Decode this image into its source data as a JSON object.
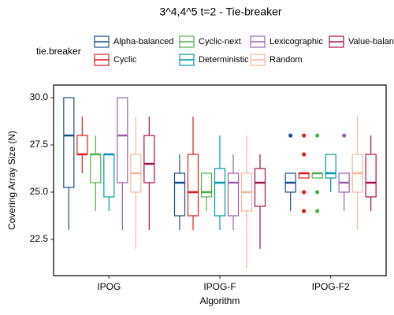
{
  "chart_data": {
    "type": "box",
    "title": "3^4,4^5 t=2 - Tie-breaker",
    "x_label": "Algorithm",
    "y_label": "Covering Array Size (N)",
    "legend_title": "tie.breaker",
    "categories": [
      "IPOG",
      "IPOG-F",
      "IPOG-F2"
    ],
    "ylim": [
      20.58,
      30.67
    ],
    "yticks": [
      22.5,
      {
        "value": 25,
        "label": "25.0"
      },
      27.5,
      {
        "value": 30,
        "label": "30.0"
      }
    ],
    "series": [
      {
        "name": "Alpha-balanced",
        "color": "#1a4f8f",
        "values": [
          {
            "min": 23,
            "q1": 25.25,
            "median": 28,
            "q3": 30,
            "max": 30
          },
          {
            "min": 23,
            "q1": 23.75,
            "median": 25.5,
            "q3": 26,
            "max": 27
          },
          {
            "min": 24,
            "q1": 25,
            "median": 25.5,
            "q3": 26,
            "max": 26
          }
        ],
        "outliers": [
          [],
          [],
          [
            28
          ]
        ]
      },
      {
        "name": "Cyclic",
        "color": "#e31a1c",
        "values": [
          {
            "min": 26,
            "q1": 27,
            "median": 27,
            "q3": 28,
            "max": 29
          },
          {
            "min": 23,
            "q1": 23.75,
            "median": 25,
            "q3": 27,
            "max": 29
          },
          {
            "min": 25.75,
            "q1": 25.75,
            "median": 26,
            "q3": 26,
            "max": 26
          }
        ],
        "outliers": [
          [],
          [],
          [
            28,
            27,
            25,
            24
          ]
        ]
      },
      {
        "name": "Cyclic-next",
        "color": "#4daf4a",
        "values": [
          {
            "min": 24,
            "q1": 25.5,
            "median": 27,
            "q3": 27,
            "max": 28
          },
          {
            "min": 24,
            "q1": 24.75,
            "median": 25,
            "q3": 26,
            "max": 26
          },
          {
            "min": 25.75,
            "q1": 25.75,
            "median": 26,
            "q3": 26,
            "max": 26
          }
        ],
        "outliers": [
          [],
          [],
          [
            28,
            25,
            24
          ]
        ]
      },
      {
        "name": "Deterministic",
        "color": "#0096aa",
        "values": [
          {
            "min": 24,
            "q1": 24.75,
            "median": 27,
            "q3": 27,
            "max": 27
          },
          {
            "min": 23,
            "q1": 23.75,
            "median": 25.5,
            "q3": 26.25,
            "max": 28
          },
          {
            "min": 25,
            "q1": 25.75,
            "median": 26,
            "q3": 27,
            "max": 27
          }
        ],
        "outliers": [
          [],
          [],
          []
        ]
      },
      {
        "name": "Lexicographic",
        "color": "#9e5fb0",
        "values": [
          {
            "min": 23,
            "q1": 25.5,
            "median": 28,
            "q3": 30,
            "max": 30
          },
          {
            "min": 23,
            "q1": 23.75,
            "median": 25.5,
            "q3": 26,
            "max": 27
          },
          {
            "min": 24,
            "q1": 25,
            "median": 25.5,
            "q3": 26,
            "max": 26
          }
        ],
        "outliers": [
          [],
          [],
          [
            28
          ]
        ]
      },
      {
        "name": "Random",
        "color": "#f7b899",
        "values": [
          {
            "min": 22,
            "q1": 25,
            "median": 26,
            "q3": 27,
            "max": 29
          },
          {
            "min": 21,
            "q1": 24,
            "median": 25,
            "q3": 26,
            "max": 28
          },
          {
            "min": 23,
            "q1": 25,
            "median": 26,
            "q3": 27,
            "max": 29
          }
        ],
        "outliers": [
          [],
          [],
          []
        ]
      },
      {
        "name": "Value-balanced",
        "color": "#a50f4b",
        "values": [
          {
            "min": 23,
            "q1": 25.5,
            "median": 26.5,
            "q3": 28,
            "max": 29
          },
          {
            "min": 22,
            "q1": 24.25,
            "median": 25.5,
            "q3": 26.25,
            "max": 27
          },
          {
            "min": 24,
            "q1": 24.75,
            "median": 25.5,
            "q3": 27,
            "max": 28
          }
        ],
        "outliers": [
          [],
          [],
          []
        ]
      }
    ]
  }
}
